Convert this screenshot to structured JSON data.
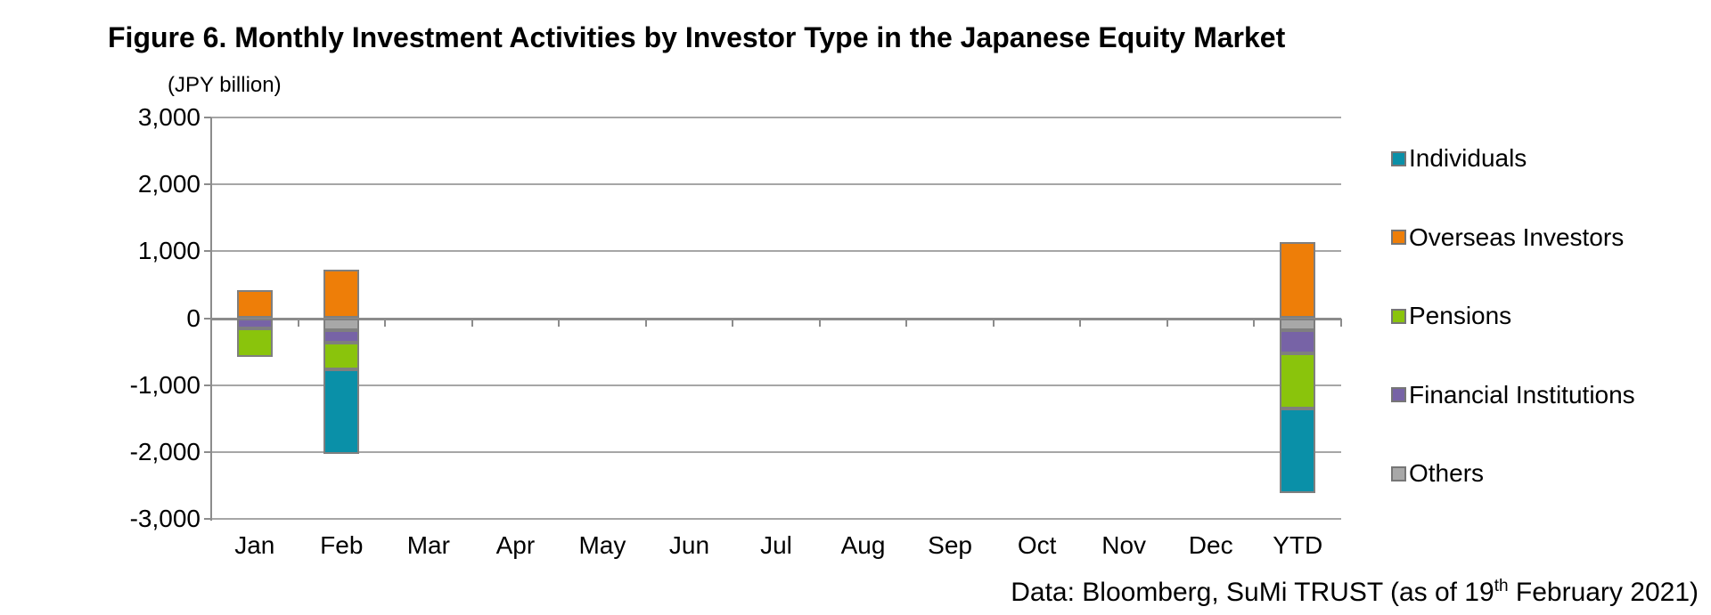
{
  "title": "Figure 6. Monthly Investment Activities by Investor Type in the Japanese Equity Market",
  "axis_unit_label": "(JPY billion)",
  "footer": {
    "prefix": "Data: Bloomberg, SuMi TRUST (as of 19",
    "superscript": "th",
    "suffix": " February 2021)"
  },
  "chart_data": {
    "type": "bar",
    "stacked": true,
    "title": "Figure 6. Monthly Investment Activities by Investor Type in the Japanese Equity Market",
    "ylabel": "(JPY billion)",
    "unit": "JPY billion",
    "categories": [
      "Jan",
      "Feb",
      "Mar",
      "Apr",
      "May",
      "Jun",
      "Jul",
      "Aug",
      "Sep",
      "Oct",
      "Nov",
      "Dec",
      "YTD"
    ],
    "series": [
      {
        "name": "Individuals",
        "color": "#0a90a8",
        "values": [
          0,
          -1260,
          0,
          0,
          0,
          0,
          0,
          0,
          0,
          0,
          0,
          0,
          -1260
        ]
      },
      {
        "name": "Overseas Investors",
        "color": "#ee7e08",
        "values": [
          420,
          720,
          0,
          0,
          0,
          0,
          0,
          0,
          0,
          0,
          0,
          0,
          1140
        ]
      },
      {
        "name": "Pensions",
        "color": "#8ac40c",
        "values": [
          -430,
          -400,
          0,
          0,
          0,
          0,
          0,
          0,
          0,
          0,
          0,
          0,
          -830
        ]
      },
      {
        "name": "Financial Institutions",
        "color": "#7763a6",
        "values": [
          -150,
          -190,
          0,
          0,
          0,
          0,
          0,
          0,
          0,
          0,
          0,
          0,
          -340
        ]
      },
      {
        "name": "Others",
        "color": "#a8a8a8",
        "values": [
          0,
          -180,
          0,
          0,
          0,
          0,
          0,
          0,
          0,
          0,
          0,
          0,
          -180
        ]
      }
    ],
    "negative_stack_order": [
      "Others",
      "Financial Institutions",
      "Pensions",
      "Individuals"
    ],
    "ylim": [
      -3000,
      3000
    ],
    "ytick_step": 1000,
    "ytick_labels": [
      "3,000",
      "2,000",
      "1,000",
      "0",
      "-1,000",
      "-2,000",
      "-3,000"
    ],
    "grid": true,
    "legend_position": "right"
  }
}
